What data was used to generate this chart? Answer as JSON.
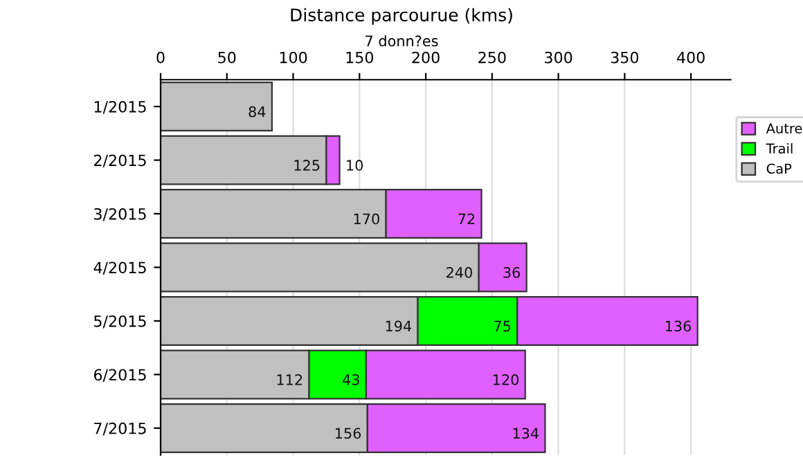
{
  "chart_data": {
    "type": "bar",
    "orientation": "horizontal",
    "stacked": true,
    "title": "Distance parcourue (kms)",
    "subtitle": "7 donn?es",
    "categories": [
      "1/2015",
      "2/2015",
      "3/2015",
      "4/2015",
      "5/2015",
      "6/2015",
      "7/2015"
    ],
    "series": [
      {
        "name": "CaP",
        "color": "#c0c0c0",
        "values": [
          84,
          125,
          170,
          240,
          194,
          112,
          156
        ]
      },
      {
        "name": "Trail",
        "color": "#00ff00",
        "values": [
          null,
          null,
          null,
          null,
          75,
          43,
          null
        ]
      },
      {
        "name": "Autre",
        "color": "#e060ff",
        "values": [
          null,
          10,
          72,
          36,
          136,
          120,
          134
        ]
      }
    ],
    "xlim": [
      0,
      430
    ],
    "xticks": [
      0,
      50,
      100,
      150,
      200,
      250,
      300,
      350,
      400
    ],
    "grid": "x",
    "legend": "right",
    "data_labels": true
  }
}
